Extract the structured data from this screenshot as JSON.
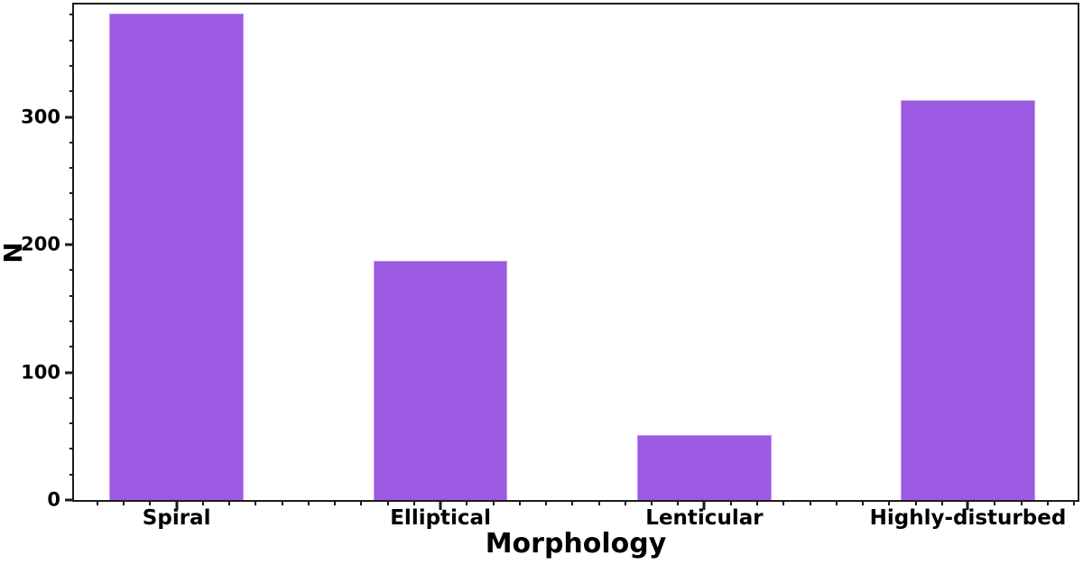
{
  "chart_data": {
    "type": "bar",
    "title": "",
    "xlabel": "Morphology",
    "ylabel": "N",
    "categories": [
      "Spiral",
      "Elliptical",
      "Lenticular",
      "Highly-disturbed"
    ],
    "values": [
      381,
      187,
      51,
      313
    ],
    "ylim": [
      0,
      388
    ],
    "yticks": [
      0,
      100,
      200,
      300
    ],
    "y_minor_interval": 20,
    "x_minor_divisions": 10,
    "bar_color": "#9c5ae2",
    "bar_edge_color": "#c993e8",
    "axis_color": "#1b1b1b",
    "text_color": "#000000",
    "grid": false,
    "legend_position": "none"
  }
}
